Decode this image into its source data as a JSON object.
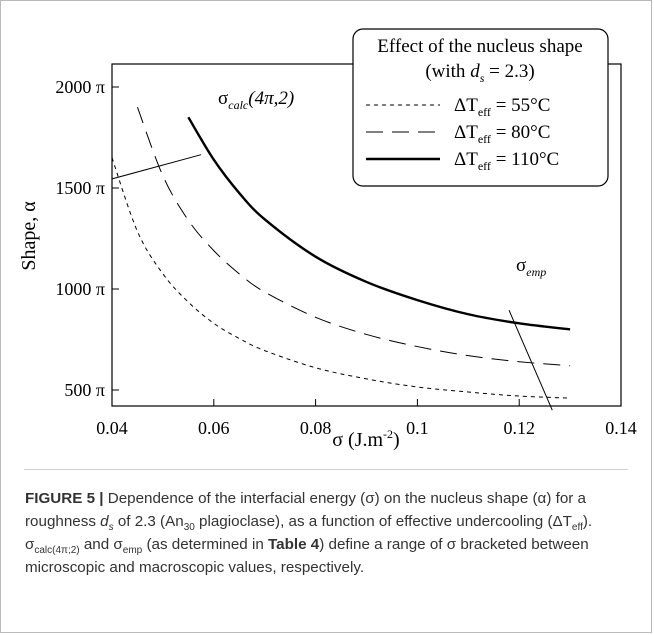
{
  "chart_data": {
    "type": "line",
    "xlabel_main": "σ (J.m",
    "xlabel_sup": "-2",
    "xlabel_close": ")",
    "ylabel": "Shape, α",
    "xlim": [
      0.04,
      0.14
    ],
    "ylim": [
      400,
      2000
    ],
    "x_ticks": [
      0.04,
      0.06,
      0.08,
      0.1,
      0.12,
      0.14
    ],
    "x_tick_labels": [
      "0.04",
      "0.06",
      "0.08",
      "0.1",
      "0.12",
      "0.14"
    ],
    "y_ticks": [
      500,
      1000,
      1500,
      2000
    ],
    "y_tick_labels": [
      "500 π",
      "1000 π",
      "1500 π",
      "2000 π"
    ],
    "legend": {
      "title_line1": "Effect of the nucleus shape",
      "title_line2_pre": "(with ",
      "title_line2_var": "d",
      "title_line2_sub": "s",
      "title_line2_post": " = 2.3)",
      "position": "top-right"
    },
    "series": [
      {
        "name_pre": "ΔT",
        "name_sub": "eff",
        "name_post": " = 55°C",
        "style": "short-dash",
        "points": [
          [
            0.04,
            1650
          ],
          [
            0.045,
            1285
          ],
          [
            0.05,
            1075
          ],
          [
            0.055,
            935
          ],
          [
            0.06,
            830
          ],
          [
            0.065,
            755
          ],
          [
            0.07,
            695
          ],
          [
            0.08,
            610
          ],
          [
            0.09,
            555
          ],
          [
            0.1,
            515
          ],
          [
            0.11,
            490
          ],
          [
            0.12,
            470
          ],
          [
            0.13,
            460
          ]
        ]
      },
      {
        "name_pre": "ΔT",
        "name_sub": "eff",
        "name_post": " = 80°C",
        "style": "long-dash",
        "points": [
          [
            0.045,
            1900
          ],
          [
            0.05,
            1560
          ],
          [
            0.055,
            1340
          ],
          [
            0.06,
            1190
          ],
          [
            0.065,
            1075
          ],
          [
            0.07,
            985
          ],
          [
            0.08,
            860
          ],
          [
            0.09,
            775
          ],
          [
            0.1,
            715
          ],
          [
            0.11,
            670
          ],
          [
            0.12,
            640
          ],
          [
            0.13,
            620
          ]
        ]
      },
      {
        "name_pre": "ΔT",
        "name_sub": "eff",
        "name_post": " = 110°C",
        "style": "solid",
        "points": [
          [
            0.055,
            1850
          ],
          [
            0.06,
            1640
          ],
          [
            0.065,
            1475
          ],
          [
            0.07,
            1345
          ],
          [
            0.08,
            1160
          ],
          [
            0.09,
            1035
          ],
          [
            0.1,
            945
          ],
          [
            0.11,
            875
          ],
          [
            0.12,
            830
          ],
          [
            0.13,
            800
          ]
        ]
      }
    ],
    "annotations": [
      {
        "id": "sigma-calc",
        "text_main": "σ",
        "text_sub": "calc",
        "text_post": "(4π,2)",
        "line": [
          [
            0.04,
            1545
          ],
          [
            0.0575,
            1665
          ]
        ]
      },
      {
        "id": "sigma-emp",
        "text_main": "σ",
        "text_sub": "emp",
        "text_post": "",
        "line": [
          [
            0.118,
            895
          ],
          [
            0.1265,
            400
          ]
        ]
      }
    ]
  },
  "caption": {
    "label": "FIGURE 5 |",
    "t1": " Dependence of the interfacial energy (σ) on the nucleus shape (α) for a roughness ",
    "ds_main": "d",
    "ds_sub": "s",
    "t2": " of 2.3 (An",
    "an_sub": "30",
    "t3": " plagioclase), as a function of effective undercooling (ΔT",
    "eff_sub": "eff",
    "t4": "). σ",
    "calc_sub": "calc(4π;2)",
    "t5": " and σ",
    "emp_sub": "emp",
    "t6": " (as determined in ",
    "table_ref": "Table 4",
    "t7": ") define a range of σ bracketed between microscopic and macroscopic values, respectively."
  }
}
